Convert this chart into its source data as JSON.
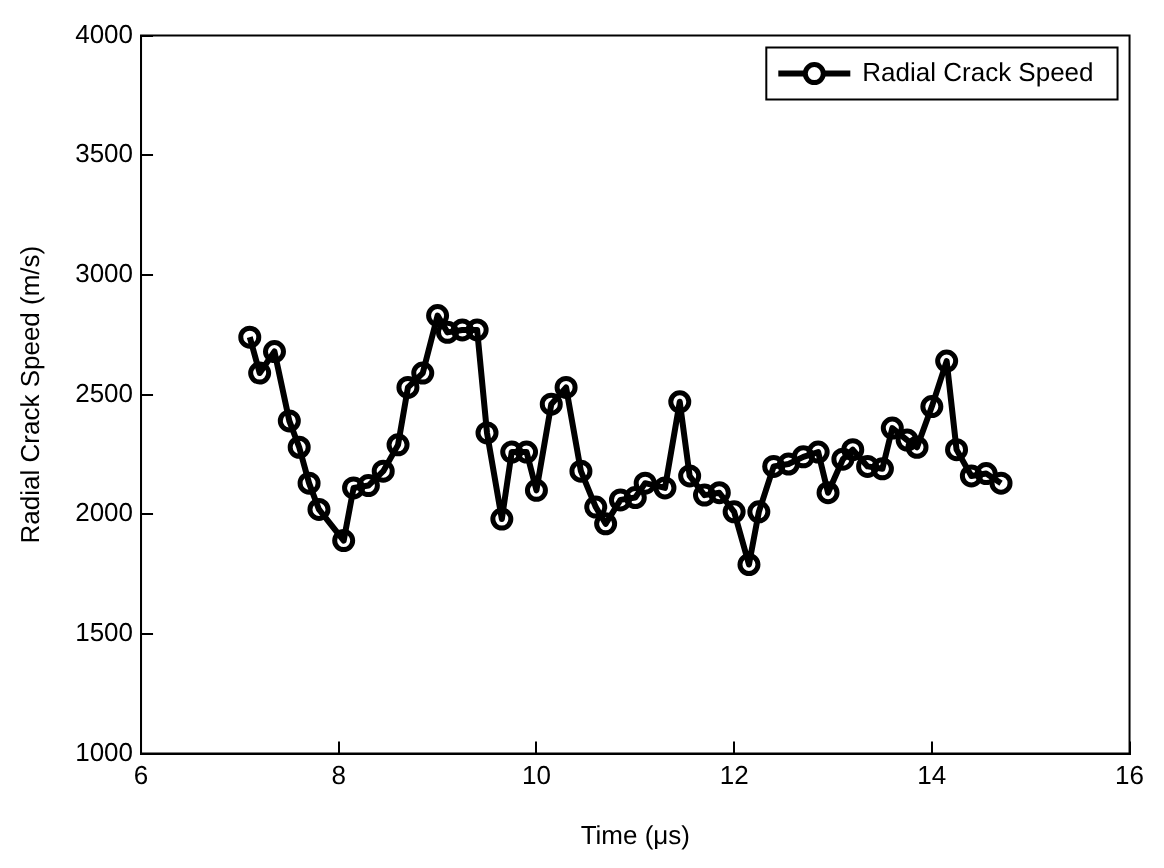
{
  "chart_data": {
    "type": "line",
    "xlabel": "Time (μs)",
    "ylabel": "Radial Crack Speed (m/s)",
    "xlim": [
      6,
      16
    ],
    "xticks": [
      6,
      8,
      10,
      12,
      14,
      16
    ],
    "ylim": [
      1000,
      4000
    ],
    "yticks": [
      1000,
      1500,
      2000,
      2500,
      3000,
      3500,
      4000
    ],
    "grid": false,
    "legend": "top right",
    "marker": "circle",
    "line_style": "solid",
    "series": [
      {
        "name": "Radial Crack Speed",
        "color": "#000000",
        "x": [
          7.1,
          7.2,
          7.35,
          7.5,
          7.6,
          7.7,
          7.8,
          8.05,
          8.15,
          8.3,
          8.45,
          8.6,
          8.7,
          8.85,
          9.0,
          9.1,
          9.25,
          9.4,
          9.5,
          9.65,
          9.75,
          9.9,
          10.0,
          10.15,
          10.3,
          10.45,
          10.6,
          10.7,
          10.85,
          11.0,
          11.1,
          11.3,
          11.45,
          11.55,
          11.7,
          11.85,
          12.0,
          12.15,
          12.25,
          12.4,
          12.55,
          12.7,
          12.85,
          12.95,
          13.1,
          13.2,
          13.35,
          13.5,
          13.6,
          13.75,
          13.85,
          14.0,
          14.15,
          14.25,
          14.4,
          14.55,
          14.7
        ],
        "values": [
          2740,
          2590,
          2680,
          2390,
          2280,
          2130,
          2020,
          1890,
          2110,
          2120,
          2180,
          2290,
          2530,
          2590,
          2830,
          2760,
          2770,
          2770,
          2340,
          1980,
          2260,
          2260,
          2100,
          2460,
          2530,
          2180,
          2030,
          1960,
          2060,
          2070,
          2130,
          2110,
          2470,
          2160,
          2080,
          2090,
          2010,
          1790,
          2010,
          2200,
          2210,
          2240,
          2260,
          2090,
          2230,
          2270,
          2200,
          2190,
          2360,
          2310,
          2280,
          2450,
          2640,
          2270,
          2160,
          2170,
          2130
        ]
      }
    ]
  }
}
